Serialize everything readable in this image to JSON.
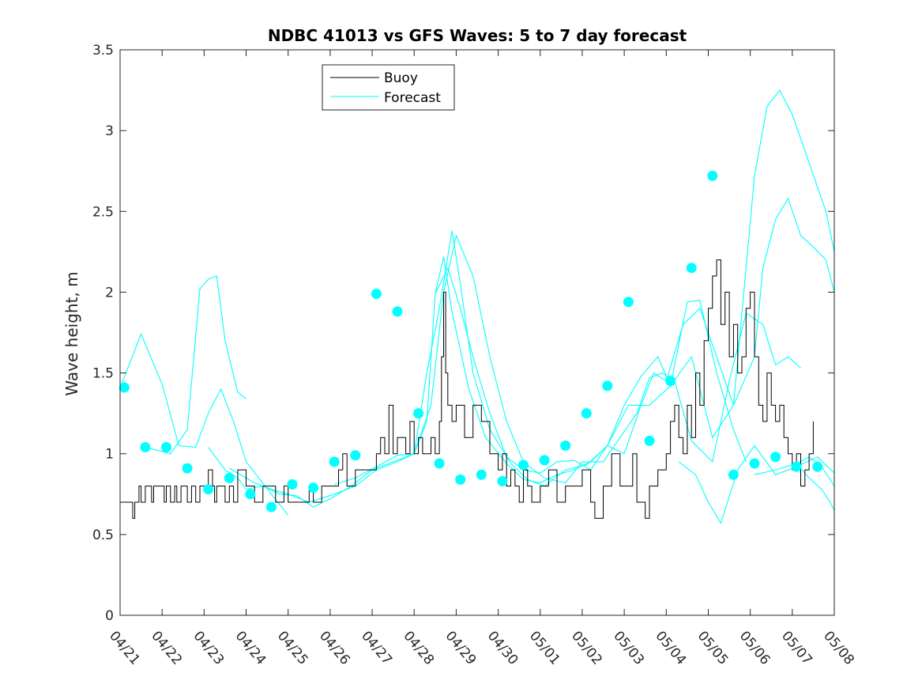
{
  "chart_data": {
    "type": "line",
    "title": "NDBC 41013 vs GFS Waves: 5 to 7 day forecast",
    "xlabel": "",
    "ylabel": "Wave height, m",
    "x_unit": "day",
    "xlim": [
      0,
      17
    ],
    "ylim": [
      0,
      3.5
    ],
    "x_ticks": [
      0,
      1,
      2,
      3,
      4,
      5,
      6,
      7,
      8,
      9,
      10,
      11,
      12,
      13,
      14,
      15,
      16,
      17
    ],
    "x_tick_labels": [
      "04/21",
      "04/22",
      "04/23",
      "04/24",
      "04/25",
      "04/26",
      "04/27",
      "04/28",
      "04/29",
      "04/30",
      "05/01",
      "05/02",
      "05/03",
      "05/04",
      "05/05",
      "05/06",
      "05/07",
      "05/08"
    ],
    "y_ticks": [
      0,
      0.5,
      1,
      1.5,
      2,
      2.5,
      3,
      3.5
    ],
    "y_tick_labels": [
      "0",
      "0.5",
      "1",
      "1.5",
      "2",
      "2.5",
      "3",
      "3.5"
    ],
    "legend": {
      "placement": "top-center",
      "entries": [
        "Buoy",
        "Forecast"
      ]
    },
    "grid": false,
    "colors": {
      "buoy": "#000000",
      "forecast": "#00ffff",
      "marker": "#00ffff"
    },
    "series": [
      {
        "name": "Buoy",
        "x": [
          0,
          0.25,
          0.3,
          0.35,
          0.45,
          0.5,
          0.6,
          0.75,
          0.8,
          1,
          1.05,
          1.1,
          1.2,
          1.3,
          1.35,
          1.45,
          1.6,
          1.7,
          1.8,
          1.9,
          2.0,
          2.1,
          2.2,
          2.25,
          2.3,
          2.5,
          2.6,
          2.7,
          2.8,
          3,
          3.2,
          3.4,
          3.5,
          3.7,
          3.9,
          4.0,
          4.2,
          4.4,
          4.5,
          4.6,
          4.8,
          5.0,
          5.2,
          5.3,
          5.4,
          5.6,
          5.8,
          6.0,
          6.1,
          6.2,
          6.3,
          6.4,
          6.5,
          6.6,
          6.8,
          6.9,
          7.0,
          7.1,
          7.2,
          7.3,
          7.4,
          7.5,
          7.6,
          7.65,
          7.7,
          7.75,
          7.8,
          7.9,
          8.0,
          8.2,
          8.4,
          8.6,
          8.8,
          9.0,
          9.1,
          9.2,
          9.3,
          9.4,
          9.5,
          9.6,
          9.7,
          9.8,
          10.0,
          10.2,
          10.4,
          10.6,
          10.8,
          11.0,
          11.1,
          11.2,
          11.3,
          11.5,
          11.7,
          11.9,
          12.0,
          12.2,
          12.3,
          12.5,
          12.6,
          12.8,
          13.0,
          13.1,
          13.2,
          13.3,
          13.4,
          13.5,
          13.6,
          13.7,
          13.8,
          13.9,
          14.0,
          14.1,
          14.2,
          14.3,
          14.4,
          14.5,
          14.6,
          14.7,
          14.8,
          14.9,
          15.0,
          15.1,
          15.2,
          15.3,
          15.4,
          15.5,
          15.6,
          15.7,
          15.8,
          15.9,
          16.0,
          16.1,
          16.2,
          16.3,
          16.4,
          16.5
        ],
        "values": [
          0.7,
          0.7,
          0.6,
          0.7,
          0.8,
          0.7,
          0.8,
          0.7,
          0.8,
          0.8,
          0.7,
          0.8,
          0.7,
          0.8,
          0.7,
          0.8,
          0.7,
          0.8,
          0.7,
          0.8,
          0.8,
          0.9,
          0.8,
          0.7,
          0.8,
          0.7,
          0.8,
          0.7,
          0.9,
          0.8,
          0.7,
          0.8,
          0.8,
          0.7,
          0.8,
          0.7,
          0.7,
          0.7,
          0.8,
          0.7,
          0.8,
          0.8,
          0.9,
          1.0,
          0.8,
          0.9,
          0.9,
          0.9,
          1.0,
          1.1,
          1.0,
          1.3,
          1.0,
          1.1,
          1.0,
          1.2,
          1.0,
          1.1,
          1.0,
          1.0,
          1.1,
          1.0,
          1.2,
          1.6,
          2.0,
          1.5,
          1.3,
          1.2,
          1.3,
          1.1,
          1.3,
          1.2,
          1.0,
          0.9,
          1.0,
          0.8,
          0.9,
          0.8,
          0.7,
          0.9,
          0.8,
          0.7,
          0.8,
          0.9,
          0.7,
          0.8,
          0.8,
          0.9,
          0.9,
          0.7,
          0.6,
          0.8,
          1.0,
          0.8,
          0.8,
          1.0,
          0.7,
          0.6,
          0.8,
          0.9,
          1.0,
          1.2,
          1.3,
          1.1,
          1.0,
          1.3,
          1.1,
          1.5,
          1.3,
          1.7,
          1.9,
          2.1,
          2.2,
          1.8,
          2.0,
          1.6,
          1.8,
          1.5,
          1.6,
          1.9,
          2.0,
          1.6,
          1.3,
          1.2,
          1.5,
          1.3,
          1.2,
          1.3,
          1.1,
          1.0,
          0.9,
          1.0,
          0.8,
          0.9,
          1.0,
          1.2
        ]
      },
      {
        "name": "Forecast",
        "segments": [
          {
            "x": [
              0,
              0.5,
              1,
              1.4,
              1.8,
              2.1,
              2.4,
              2.7,
              3.0,
              3.3,
              3.6,
              4.0
            ],
            "values": [
              1.41,
              1.74,
              1.43,
              1.05,
              1.04,
              1.25,
              1.4,
              1.2,
              0.95,
              0.85,
              0.75,
              0.62
            ]
          },
          {
            "x": [
              0.6,
              1.2,
              1.6,
              1.9,
              2.1,
              2.3,
              2.5,
              2.8,
              3.0
            ],
            "values": [
              1.04,
              1.0,
              1.15,
              2.02,
              2.08,
              2.1,
              1.7,
              1.38,
              1.34
            ]
          },
          {
            "x": [
              2.1,
              2.5,
              2.8,
              3.0,
              3.4,
              3.8,
              4.2,
              4.6,
              5.0,
              5.5,
              6.0,
              6.5,
              7.0,
              7.3,
              7.5,
              7.7,
              7.9,
              8.3,
              8.7,
              9.2,
              9.6,
              10.0,
              10.4,
              10.8,
              11.2,
              11.6,
              12.0,
              12.4,
              12.8,
              13.1,
              13.5,
              13.8,
              14.2,
              14.6,
              14.9
            ],
            "values": [
              1.04,
              0.9,
              0.85,
              0.78,
              0.8,
              0.75,
              0.74,
              0.67,
              0.72,
              0.8,
              0.9,
              0.95,
              1.0,
              1.2,
              1.99,
              2.22,
              1.88,
              1.4,
              1.1,
              0.94,
              0.84,
              0.82,
              0.87,
              0.9,
              0.95,
              1.05,
              1.3,
              1.48,
              1.6,
              1.42,
              1.94,
              1.95,
              1.5,
              1.15,
              0.95
            ]
          },
          {
            "x": [
              2.6,
              3.2,
              3.6,
              4.0,
              4.5,
              5.1,
              5.6,
              6.1,
              6.6,
              7.0,
              7.4,
              7.7,
              8.0,
              8.4,
              8.8,
              9.2,
              9.6,
              10.1,
              10.6,
              11.0,
              11.5,
              11.9,
              12.3,
              12.6,
              12.9,
              13.2,
              13.6,
              14.1,
              14.5,
              14.9,
              15.3,
              15.6,
              15.9,
              16.2
            ],
            "values": [
              0.91,
              0.82,
              0.78,
              0.75,
              0.7,
              0.75,
              0.8,
              0.9,
              0.95,
              1.0,
              1.3,
              2.0,
              2.35,
              2.1,
              1.6,
              1.2,
              0.95,
              0.85,
              0.82,
              0.95,
              0.95,
              1.1,
              1.25,
              1.47,
              1.5,
              1.45,
              1.08,
              0.95,
              1.45,
              1.87,
              1.8,
              1.55,
              1.6,
              1.53
            ]
          },
          {
            "x": [
              5.1,
              5.6,
              6.1,
              6.6,
              7.0,
              7.3,
              7.6,
              7.9,
              8.1,
              8.4,
              8.8,
              9.3,
              9.7,
              10.1,
              10.6,
              11.1,
              11.6,
              12.1,
              12.6,
              13.1,
              13.6,
              14.1,
              14.6,
              15.1,
              15.3,
              15.6,
              15.9,
              16.2,
              16.5,
              16.8,
              17.0
            ],
            "values": [
              0.81,
              0.85,
              0.92,
              0.99,
              1.0,
              1.5,
              1.9,
              2.38,
              2.05,
              1.5,
              1.15,
              0.94,
              0.84,
              0.8,
              0.9,
              0.93,
              1.05,
              1.3,
              1.3,
              1.42,
              1.6,
              1.1,
              1.3,
              1.6,
              2.15,
              2.45,
              2.58,
              2.35,
              2.28,
              2.2,
              2.0
            ]
          },
          {
            "x": [
              7.5,
              7.8,
              8.1,
              8.4,
              8.8,
              9.2,
              9.6,
              10.0,
              10.4,
              10.8,
              11.2,
              11.6,
              12.0,
              12.4,
              12.7,
              13.0,
              13.4,
              13.8,
              14.2,
              14.6,
              15.1,
              15.4,
              15.7,
              16.0,
              16.4,
              16.8,
              17.0
            ],
            "values": [
              1.99,
              2.15,
              1.9,
              1.6,
              1.25,
              0.98,
              0.9,
              0.88,
              0.95,
              0.96,
              0.9,
              1.05,
              1.0,
              1.3,
              1.5,
              1.45,
              1.8,
              1.9,
              1.6,
              1.3,
              2.72,
              3.15,
              3.25,
              3.1,
              2.8,
              2.5,
              2.25
            ]
          },
          {
            "x": [
              13.3,
              13.7,
              14.0,
              14.3,
              14.7,
              15.1,
              15.6,
              16.1,
              16.6,
              17.0
            ],
            "values": [
              0.95,
              0.87,
              0.7,
              0.57,
              0.9,
              1.05,
              0.87,
              0.92,
              0.98,
              0.88
            ]
          },
          {
            "x": [
              15.1,
              15.6,
              16.1,
              16.4,
              16.7,
              17.0
            ],
            "values": [
              0.87,
              0.9,
              0.94,
              0.98,
              0.92,
              0.8
            ]
          },
          {
            "x": [
              16.1,
              16.4,
              16.7,
              16.9,
              17.0
            ],
            "values": [
              0.94,
              0.85,
              0.78,
              0.7,
              0.65
            ]
          }
        ]
      },
      {
        "name": "",
        "kind": "markers",
        "x": [
          0.1,
          0.6,
          1.1,
          1.6,
          2.1,
          2.6,
          3.1,
          3.6,
          4.1,
          4.6,
          5.1,
          5.6,
          6.1,
          6.6,
          7.1,
          7.6,
          8.1,
          8.6,
          9.1,
          9.6,
          10.1,
          10.6,
          11.1,
          11.6,
          12.1,
          12.6,
          13.1,
          13.6,
          14.1,
          14.6,
          15.1,
          15.6,
          16.1,
          16.6
        ],
        "values": [
          1.41,
          1.04,
          1.04,
          0.91,
          0.78,
          0.85,
          0.75,
          0.67,
          0.81,
          0.79,
          0.95,
          0.99,
          1.99,
          1.88,
          1.25,
          0.94,
          0.84,
          0.87,
          0.83,
          0.93,
          0.96,
          1.05,
          1.25,
          1.42,
          1.94,
          1.08,
          1.45,
          2.15,
          2.72,
          0.87,
          0.94,
          0.98,
          0.92,
          0.92
        ]
      }
    ]
  }
}
